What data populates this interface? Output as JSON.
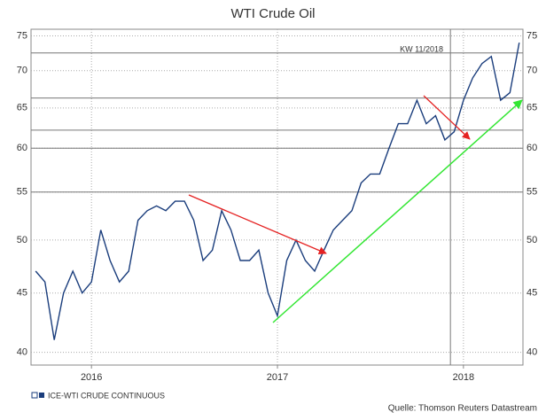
{
  "chart_data": {
    "type": "line",
    "title": "WTI Crude Oil",
    "x": [
      2015.7,
      2015.75,
      2015.8,
      2015.85,
      2015.9,
      2015.95,
      2016.0,
      2016.05,
      2016.1,
      2016.15,
      2016.2,
      2016.25,
      2016.3,
      2016.35,
      2016.4,
      2016.45,
      2016.5,
      2016.55,
      2016.6,
      2016.65,
      2016.7,
      2016.75,
      2016.8,
      2016.85,
      2016.9,
      2016.95,
      2017.0,
      2017.05,
      2017.1,
      2017.15,
      2017.2,
      2017.25,
      2017.3,
      2017.35,
      2017.4,
      2017.45,
      2017.5,
      2017.55,
      2017.6,
      2017.65,
      2017.7,
      2017.75,
      2017.8,
      2017.85,
      2017.9,
      2017.95,
      2018.0,
      2018.05,
      2018.1,
      2018.15,
      2018.2,
      2018.25,
      2018.3
    ],
    "series": [
      {
        "name": "ICE-WTI CRUDE CONTINUOUS",
        "color": "#1a3d7c",
        "values": [
          47,
          46,
          41,
          45,
          47,
          45,
          46,
          51,
          48,
          46,
          47,
          52,
          53,
          53.5,
          53,
          54,
          54,
          52,
          48,
          49,
          53,
          51,
          48,
          48,
          49,
          45,
          43,
          48,
          50,
          48,
          47,
          49,
          51,
          52,
          53,
          56,
          57,
          57,
          60,
          63,
          63,
          66,
          63,
          64,
          61,
          62,
          66,
          69,
          71,
          72,
          66,
          67,
          74
        ]
      }
    ],
    "xlim": [
      2015.675,
      2018.32
    ],
    "xticks": [
      2016,
      2017,
      2018
    ],
    "ylim": [
      39,
      76
    ],
    "log_y": true,
    "yticks": [
      40,
      45,
      50,
      55,
      60,
      65,
      70,
      75
    ],
    "grid": true,
    "reference_lines": [
      72.5,
      66.3,
      62.2,
      60,
      55
    ],
    "reference_x": 2017.93,
    "annotation": "KW 11/2018",
    "source": "Quelle: Thomson Reuters Datastream"
  }
}
